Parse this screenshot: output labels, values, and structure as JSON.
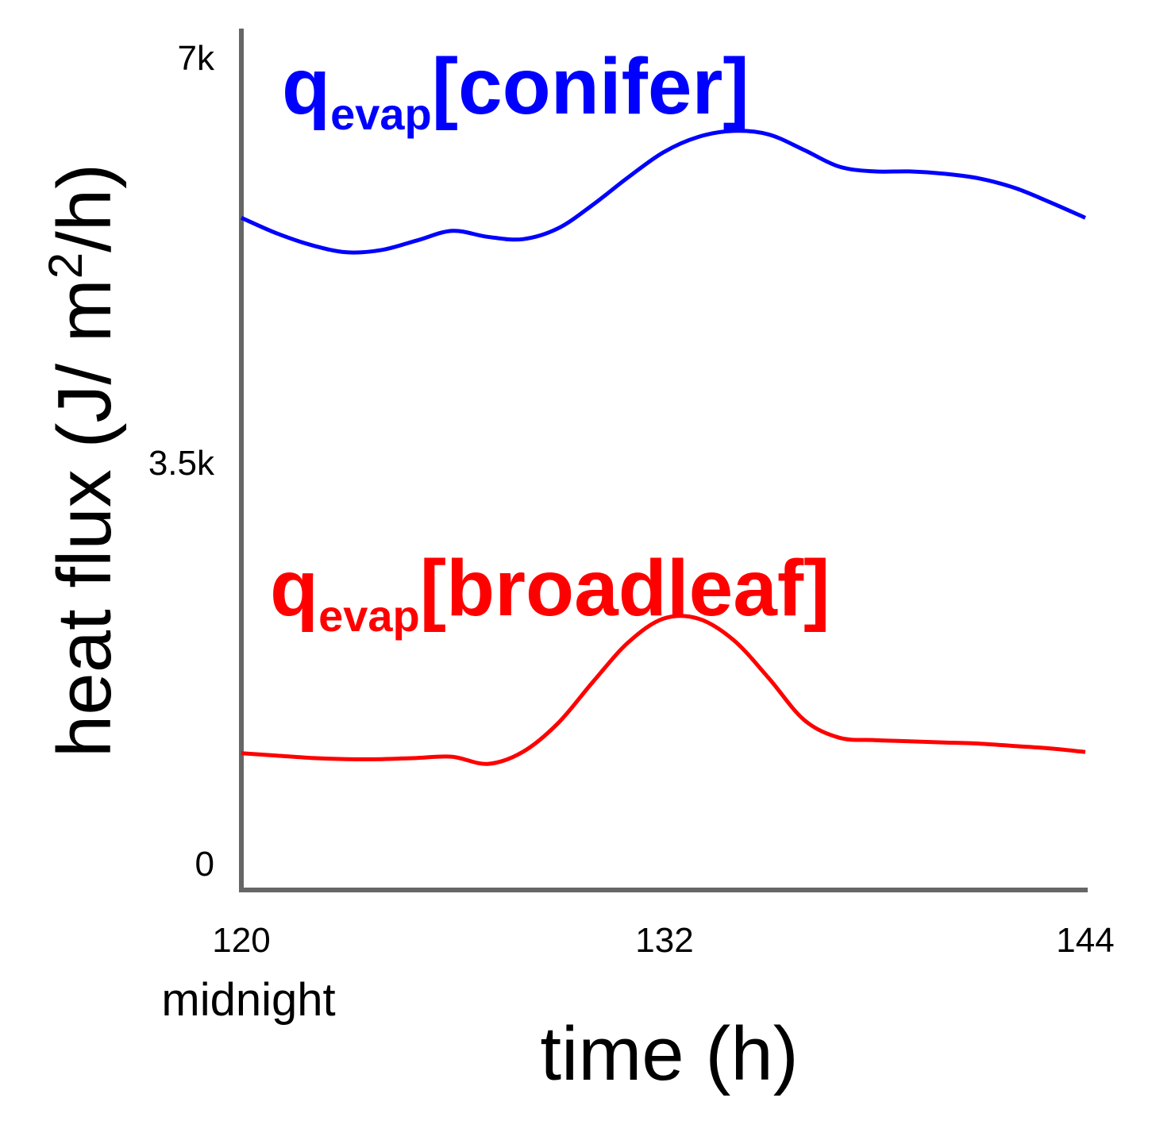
{
  "chart_data": {
    "type": "line",
    "xlabel": "time (h)",
    "ylabel_text": "heat flux (J/ m",
    "ylabel_sup": "2",
    "ylabel_tail": "/h)",
    "xlim": [
      120,
      144
    ],
    "ylim": [
      0,
      7000
    ],
    "x_ticks": [
      "120",
      "132",
      "144"
    ],
    "x_tick_values": [
      120,
      132,
      144
    ],
    "x_tick_sublabel": "midnight",
    "y_ticks": [
      "0",
      "3.5k",
      "7k"
    ],
    "y_tick_values": [
      0,
      3500,
      7000
    ],
    "grid": false,
    "series": [
      {
        "label_main": "q",
        "label_sub": "evap",
        "label_bracket": "[conifer]",
        "color": "#0000ff",
        "x": [
          120,
          121,
          122,
          123,
          124,
          125,
          126,
          127,
          128,
          129,
          130,
          131,
          132,
          133,
          134,
          135,
          136,
          137,
          138,
          139,
          140,
          141,
          142,
          143,
          144
        ],
        "y": [
          5650,
          5520,
          5420,
          5360,
          5380,
          5460,
          5540,
          5490,
          5470,
          5560,
          5760,
          5990,
          6200,
          6330,
          6380,
          6350,
          6220,
          6080,
          6040,
          6040,
          6020,
          5980,
          5900,
          5780,
          5650
        ]
      },
      {
        "label_main": "q",
        "label_sub": "evap",
        "label_bracket": "[broadleaf]",
        "color": "#ff0000",
        "x": [
          120,
          121,
          122,
          123,
          124,
          125,
          126,
          127,
          128,
          129,
          130,
          131,
          132,
          133,
          134,
          135,
          136,
          137,
          138,
          139,
          140,
          141,
          142,
          143,
          144
        ],
        "y": [
          1150,
          1130,
          1110,
          1100,
          1100,
          1110,
          1120,
          1060,
          1160,
          1400,
          1750,
          2080,
          2280,
          2280,
          2100,
          1780,
          1430,
          1280,
          1260,
          1250,
          1240,
          1230,
          1210,
          1190,
          1160
        ]
      }
    ]
  }
}
